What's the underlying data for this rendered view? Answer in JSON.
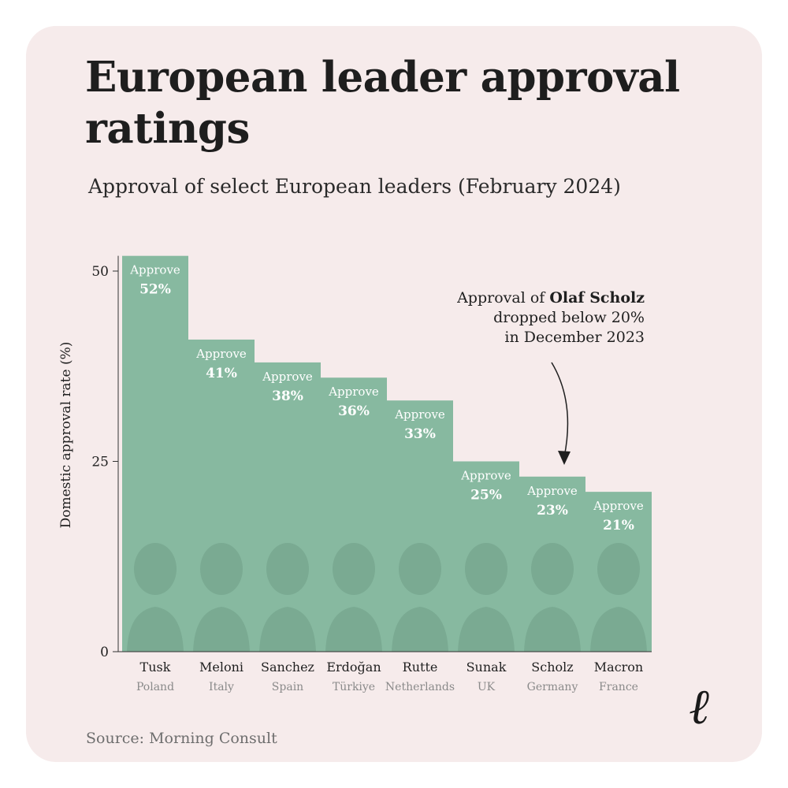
{
  "header": {
    "title": "European leader approval ratings",
    "subtitle": "Approval of select European leaders (February 2024)"
  },
  "footer": {
    "source": "Source: Morning Consult",
    "logo_glyph": "ℓ"
  },
  "annotation": {
    "line1_prefix": "Approval of ",
    "line1_bold": "Olaf Scholz",
    "line2": "dropped below 20%",
    "line3": "in December 2023"
  },
  "colors": {
    "bar": "#87b9a0",
    "bar_divider": "#6f9e87",
    "label_text": "#ffffff",
    "axis": "#333333",
    "country_text": "#8a8a8a",
    "background": "#f6ebeb"
  },
  "chart_data": {
    "type": "bar",
    "title": "European leader approval ratings",
    "subtitle": "Approval of select European leaders (February 2024)",
    "ylabel": "Domestic approval rate (%)",
    "xlabel": "",
    "ylim": [
      0,
      52
    ],
    "yticks": [
      0,
      25,
      50
    ],
    "categories": [
      "Tusk",
      "Meloni",
      "Sanchez",
      "Erdoğan",
      "Rutte",
      "Sunak",
      "Scholz",
      "Macron"
    ],
    "countries": [
      "Poland",
      "Italy",
      "Spain",
      "Türkiye",
      "Netherlands",
      "UK",
      "Germany",
      "France"
    ],
    "values": [
      52,
      41,
      38,
      36,
      33,
      25,
      23,
      21
    ],
    "bar_label_prefix": "Approve",
    "value_labels": [
      "52%",
      "41%",
      "38%",
      "36%",
      "33%",
      "25%",
      "23%",
      "21%"
    ],
    "grid": false,
    "legend": "none",
    "bar_image_note_icons": [
      "leader-portrait-icon"
    ]
  }
}
